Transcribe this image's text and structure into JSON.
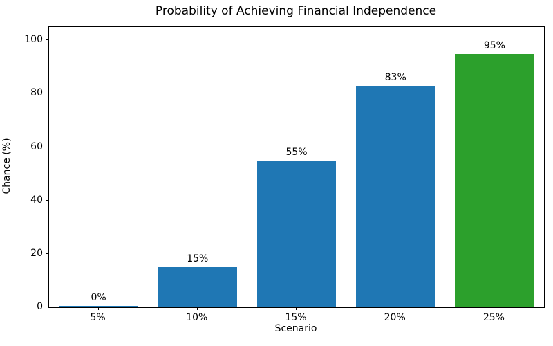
{
  "chart_data": {
    "type": "bar",
    "title": "Probability of Achieving Financial Independence",
    "xlabel": "Scenario",
    "ylabel": "Chance (%)",
    "categories": [
      "5%",
      "10%",
      "15%",
      "20%",
      "25%"
    ],
    "values": [
      0,
      15,
      55,
      83,
      95
    ],
    "bar_labels": [
      "0%",
      "15%",
      "55%",
      "83%",
      "95%"
    ],
    "bar_colors": [
      "#1f77b4",
      "#1f77b4",
      "#1f77b4",
      "#1f77b4",
      "#2ca02c"
    ],
    "yticks": [
      0,
      20,
      40,
      60,
      80,
      100
    ],
    "ylim": [
      0,
      105
    ],
    "grid": false,
    "legend": "none",
    "frame": "box"
  }
}
